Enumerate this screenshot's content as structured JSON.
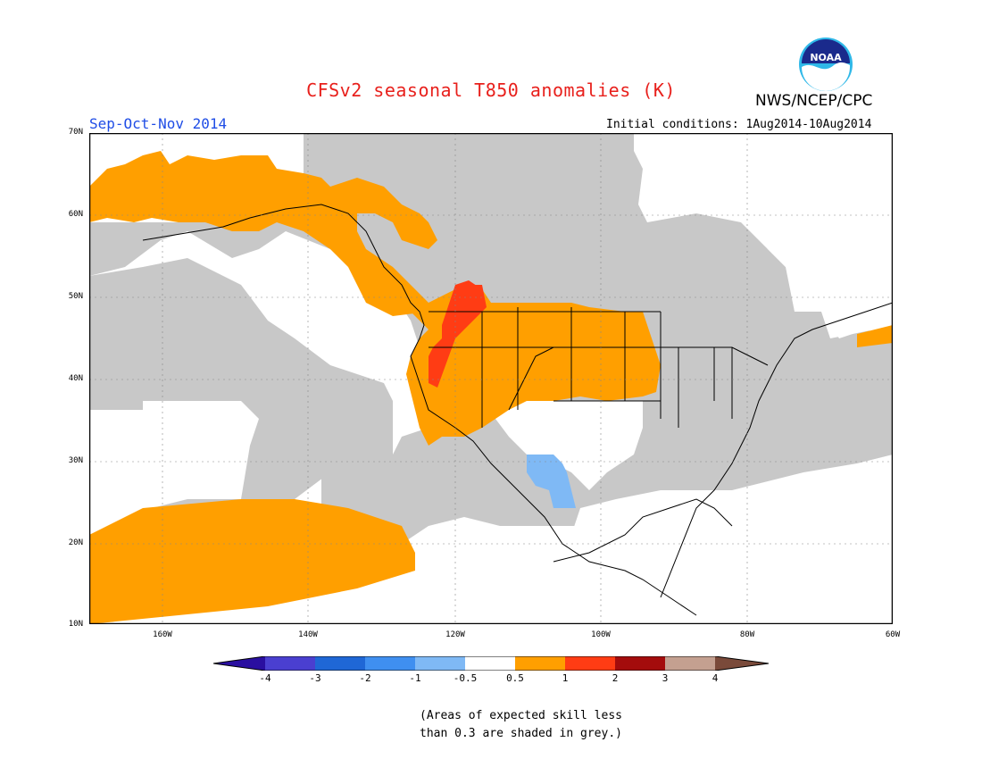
{
  "title": "CFSv2 seasonal T850 anomalies (K)",
  "season": "Sep-Oct-Nov 2014",
  "agency": "NWS/NCEP/CPC",
  "logo_text": "NOAA",
  "initial_conditions": "Initial conditions: 1Aug2014-10Aug2014",
  "lat_labels": [
    "70N",
    "60N",
    "50N",
    "40N",
    "30N",
    "20N",
    "10N"
  ],
  "lon_labels": [
    "160W",
    "140W",
    "120W",
    "100W",
    "80W",
    "60W"
  ],
  "colorbar": {
    "ticks": [
      "-4",
      "-3",
      "-2",
      "-1",
      "-0.5",
      "0.5",
      "1",
      "2",
      "3",
      "4"
    ],
    "colors": [
      "#2a0fa0",
      "#4a3fd0",
      "#1f67d6",
      "#3f8ff0",
      "#7fb9f5",
      "#ffffff",
      "#ff9f00",
      "#ff3c14",
      "#a40c0c",
      "#c4a090",
      "#7a4a3a"
    ]
  },
  "note_line1": "(Areas of expected skill less",
  "note_line2": "than 0.3 are shaded in grey.)",
  "colors": {
    "grey": "#c8c8c8",
    "orange": "#ff9f00",
    "red": "#ff3c14",
    "blue": "#7fb9f5"
  }
}
